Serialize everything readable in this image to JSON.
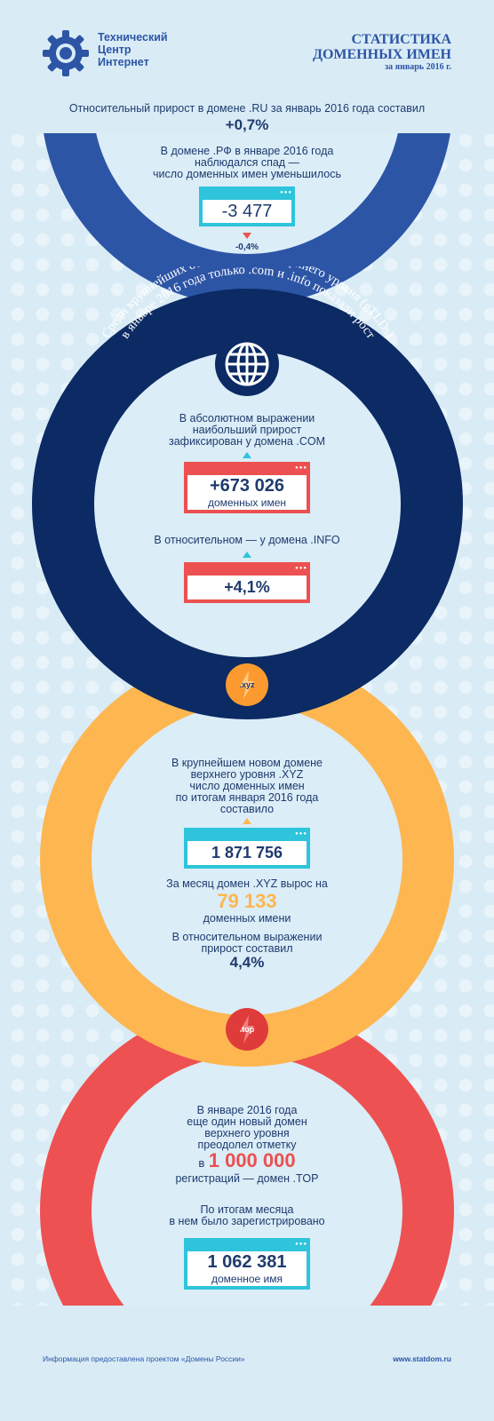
{
  "header": {
    "org_line1": "Технический",
    "org_line2": "Центр",
    "org_line3": "Интернет",
    "title_line1": "СТАТИСТИКА",
    "title_line2": "ДОМЕННЫХ ИМЕН",
    "subtitle": "за январь 2016 г."
  },
  "ru": {
    "line": "Относительный прирост  в домене .RU за январь 2016 года составил",
    "value": "+0,7%"
  },
  "rf": {
    "line1": "В домене .РФ в январе 2016 года",
    "line2": "наблюдался спад —",
    "line3": "число доменных имен уменьшилось",
    "value": "-3 477",
    "percent": "-0,4%"
  },
  "gtld": {
    "arc_line1": "Среди крупнейших общих доменов верхнего уровня (gTLDs)",
    "arc_line2": "в январе 2016 года только .com и .info показали рост",
    "abs_line1": "В абсолютном выражении",
    "abs_line2": "наибольший прирост",
    "abs_line3": "зафиксирован у домена .COM",
    "com_value": "+673 026",
    "com_unit": "доменных имен",
    "rel_line": "В относительном — у домена .INFO",
    "info_value": "+4,1%"
  },
  "xyz": {
    "badge": ".xyz",
    "line1": "В крупнейшем новом домене",
    "line2": "верхнего уровня .XYZ",
    "line3": "число доменных имен",
    "line4": "по итогам января 2016 года",
    "line5": "составило",
    "value": "1 871 756",
    "growth_line": "За месяц домен .XYZ вырос на",
    "growth_value": "79 133",
    "growth_unit": "доменных имени",
    "rel_line1": "В относительном выражении",
    "rel_line2": "прирост составил",
    "rel_value": "4,4%"
  },
  "top": {
    "badge": ".top",
    "line1": "В январе 2016 года",
    "line2": "еще один новый домен",
    "line3": "верхнего уровня",
    "line4": "преодолел отметку",
    "in_word": "в",
    "million": "1 000 000",
    "line5": "регистраций — домен .TOP",
    "line6": "По итогам месяца",
    "line7": "в нем было зарегистрировано",
    "value": "1 062 381",
    "unit": "доменное имя"
  },
  "footer": {
    "source": "Информация предоставлена проектом «Домены России»",
    "url": "www.statdom.ru"
  },
  "colors": {
    "background": "#d9ecf6",
    "ring_blue": "#2d55a6",
    "ring_navy": "#0c2a63",
    "ring_orange": "#feb650",
    "ring_red": "#ee5151",
    "card_cyan": "#2ec4db",
    "card_red": "#ec5050",
    "text": "#1f3b6e"
  },
  "icons": [
    "gear-logo-icon",
    "globe-icon",
    "lightning-icon"
  ]
}
